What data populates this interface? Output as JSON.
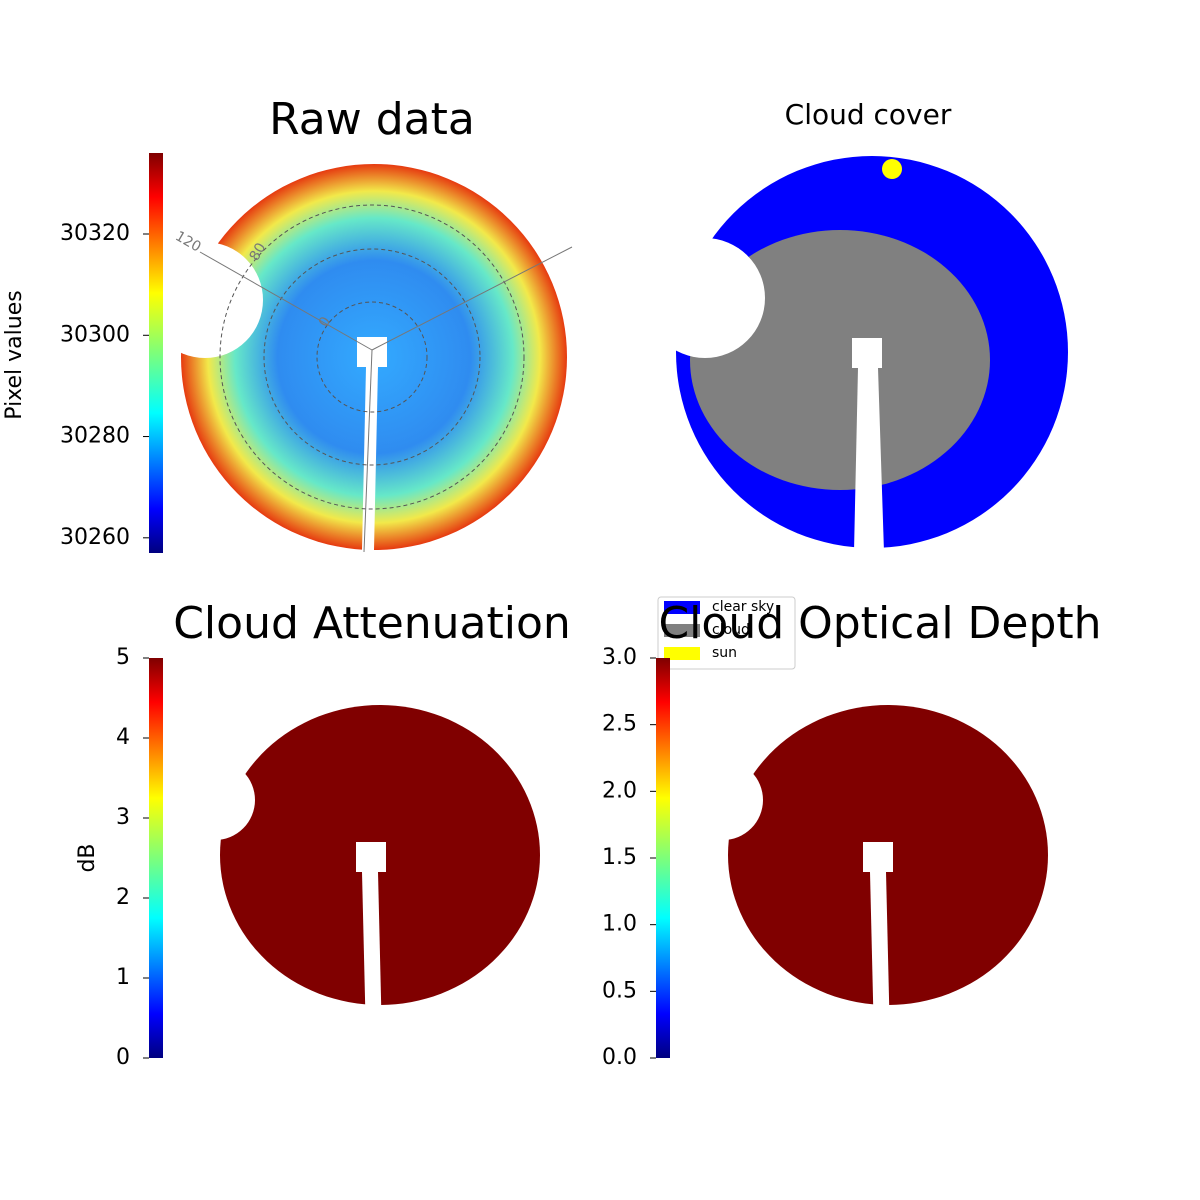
{
  "chart_data": [
    {
      "type": "image",
      "title": "Raw data",
      "ylabel": "Pixel values",
      "colormap": "jet",
      "ylim": [
        30257,
        30336
      ],
      "yticks": [
        30260,
        30280,
        30300,
        30320
      ],
      "polar_labels": [
        "120",
        "80",
        "0"
      ]
    },
    {
      "type": "image",
      "title": "Cloud cover",
      "series": [
        {
          "name": "clear sky",
          "color": "#0000ff"
        },
        {
          "name": "cloud",
          "color": "#808080"
        },
        {
          "name": "sun",
          "color": "#ffff00"
        }
      ]
    },
    {
      "type": "image",
      "title": "Cloud Attenuation",
      "ylabel": "dB",
      "colormap": "jet",
      "ylim": [
        0,
        5
      ],
      "yticks": [
        0,
        1,
        2,
        3,
        4,
        5
      ]
    },
    {
      "type": "image",
      "title": "Cloud Optical Depth",
      "colormap": "jet",
      "ylim": [
        0,
        3
      ],
      "yticks": [
        {
          "value": 0,
          "label": "0.0"
        },
        0.5,
        {
          "value": 1,
          "label": "1.0"
        },
        1.5,
        {
          "value": 2,
          "label": "2.0"
        },
        2.5,
        {
          "value": 3,
          "label": "3.0"
        }
      ]
    }
  ]
}
